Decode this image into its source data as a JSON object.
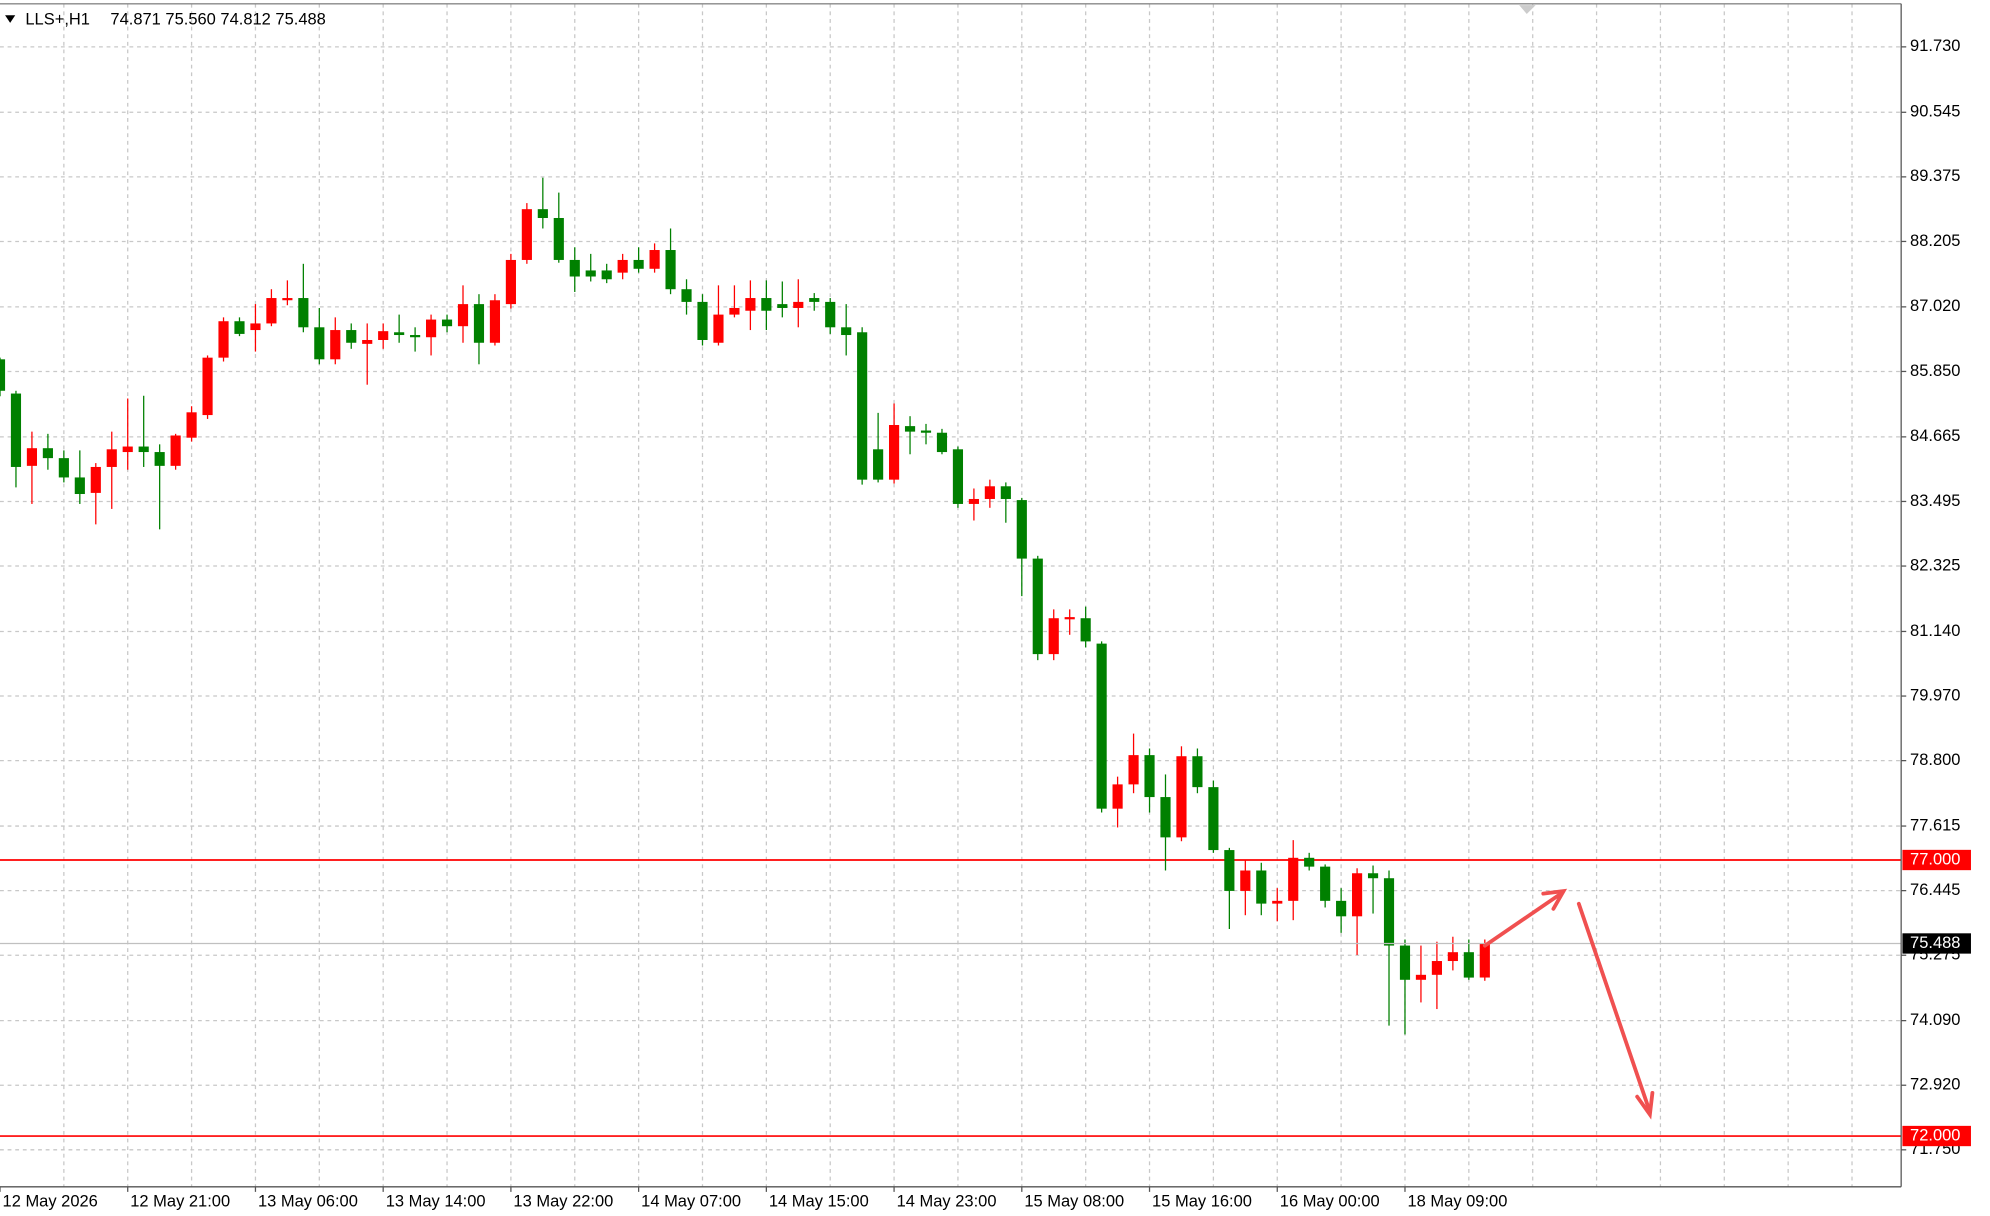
{
  "chart_data": {
    "type": "candlestick",
    "title": "LLS+,H1",
    "ohlc_label": "74.871 75.560 74.812 75.488",
    "categories": [
      "12 May 2026",
      null,
      null,
      null,
      null,
      null,
      null,
      null,
      "12 May 21:00",
      null,
      null,
      null,
      null,
      null,
      null,
      null,
      "13 May 06:00",
      null,
      null,
      null,
      null,
      null,
      null,
      null,
      "13 May 14:00",
      null,
      null,
      null,
      null,
      null,
      null,
      null,
      "13 May 22:00",
      null,
      null,
      null,
      null,
      null,
      null,
      null,
      "14 May 07:00",
      null,
      null,
      null,
      null,
      null,
      null,
      null,
      "14 May 15:00",
      null,
      null,
      null,
      null,
      null,
      null,
      null,
      "14 May 23:00",
      null,
      null,
      null,
      null,
      null,
      null,
      null,
      "15 May 08:00",
      null,
      null,
      null,
      null,
      null,
      null,
      null,
      "15 May 16:00",
      null,
      null,
      null,
      null,
      null,
      null,
      null,
      "16 May 00:00",
      null,
      null,
      null,
      null,
      null,
      null,
      null,
      "18 May 09:00",
      null,
      null,
      null,
      null,
      null
    ],
    "open": [
      86.07,
      85.45,
      84.14,
      84.46,
      84.28,
      83.93,
      83.65,
      84.12,
      84.39,
      84.49,
      84.39,
      84.14,
      84.65,
      85.06,
      86.1,
      86.76,
      86.6,
      86.72,
      87.14,
      87.18,
      86.65,
      86.07,
      86.6,
      86.35,
      86.42,
      86.56,
      86.51,
      86.47,
      86.79,
      86.67,
      87.07,
      86.37,
      87.07,
      87.87,
      88.79,
      88.63,
      87.87,
      87.68,
      87.68,
      87.64,
      87.87,
      87.71,
      88.05,
      87.34,
      87.11,
      86.37,
      86.88,
      86.95,
      87.18,
      87.07,
      87.0,
      87.18,
      87.11,
      86.65,
      86.56,
      84.44,
      83.89,
      84.86,
      84.78,
      84.74,
      84.44,
      83.45,
      83.54,
      83.77,
      83.52,
      82.46,
      80.73,
      81.36,
      81.38,
      80.92,
      77.93,
      78.37,
      78.9,
      78.14,
      77.41,
      78.88,
      78.32,
      77.18,
      76.44,
      76.81,
      76.21,
      76.26,
      77.04,
      76.88,
      76.26,
      75.98,
      76.76,
      76.67,
      75.45,
      74.83,
      74.92,
      75.17,
      75.33,
      74.871
    ],
    "high": [
      86.1,
      85.5,
      84.76,
      84.72,
      84.42,
      84.42,
      84.19,
      84.76,
      85.36,
      85.41,
      84.53,
      84.72,
      85.22,
      86.14,
      86.83,
      86.83,
      87.07,
      87.34,
      87.5,
      87.8,
      87.0,
      86.83,
      86.72,
      86.72,
      86.72,
      86.88,
      86.65,
      86.88,
      86.88,
      87.41,
      87.25,
      87.25,
      87.98,
      88.9,
      89.36,
      89.09,
      88.1,
      87.98,
      87.8,
      87.98,
      88.1,
      88.17,
      88.44,
      87.52,
      87.25,
      87.41,
      87.41,
      87.5,
      87.5,
      87.48,
      87.52,
      87.27,
      87.18,
      87.07,
      86.65,
      85.1,
      85.27,
      85.04,
      84.9,
      84.81,
      84.49,
      83.73,
      83.89,
      83.84,
      83.56,
      82.51,
      81.54,
      81.54,
      81.59,
      80.96,
      78.51,
      79.29,
      79.02,
      78.55,
      79.06,
      79.02,
      78.44,
      77.22,
      76.99,
      76.95,
      76.49,
      77.36,
      77.13,
      76.92,
      76.49,
      76.85,
      76.9,
      76.81,
      75.56,
      75.45,
      75.52,
      75.61,
      75.56,
      75.56
    ],
    "low": [
      85.4,
      83.75,
      83.45,
      84.07,
      83.84,
      83.45,
      83.08,
      83.36,
      84.07,
      84.12,
      82.99,
      84.07,
      84.58,
      84.99,
      86.03,
      86.49,
      86.21,
      86.67,
      87.05,
      86.56,
      85.98,
      85.98,
      86.26,
      85.61,
      86.26,
      86.37,
      86.21,
      86.14,
      86.56,
      86.37,
      85.98,
      86.32,
      86.99,
      87.8,
      88.44,
      87.82,
      87.29,
      87.48,
      87.45,
      87.52,
      87.64,
      87.64,
      87.25,
      86.88,
      86.32,
      86.32,
      86.83,
      86.6,
      86.6,
      86.83,
      86.65,
      86.95,
      86.53,
      86.14,
      83.8,
      83.84,
      83.82,
      84.35,
      84.53,
      84.35,
      83.38,
      83.15,
      83.38,
      83.11,
      81.78,
      80.62,
      80.62,
      81.08,
      80.85,
      77.86,
      77.59,
      78.21,
      77.86,
      76.81,
      77.34,
      78.21,
      77.13,
      75.75,
      76.0,
      76.0,
      75.89,
      75.91,
      76.81,
      76.14,
      75.68,
      75.28,
      76.03,
      74.0,
      73.84,
      74.42,
      74.3,
      75.0,
      74.83,
      74.812
    ],
    "close": [
      85.5,
      84.12,
      84.46,
      84.28,
      83.93,
      83.63,
      84.12,
      84.44,
      84.49,
      84.39,
      84.14,
      84.69,
      85.11,
      86.1,
      86.76,
      86.53,
      86.72,
      87.18,
      87.18,
      86.65,
      86.07,
      86.6,
      86.37,
      86.42,
      86.58,
      86.51,
      86.47,
      86.79,
      86.67,
      87.07,
      86.37,
      87.14,
      87.87,
      88.79,
      88.63,
      87.87,
      87.57,
      87.57,
      87.52,
      87.87,
      87.71,
      88.05,
      87.34,
      87.11,
      86.42,
      86.88,
      87.0,
      87.18,
      86.95,
      87.0,
      87.11,
      87.11,
      86.65,
      86.51,
      83.89,
      83.89,
      84.88,
      84.76,
      84.74,
      84.39,
      83.45,
      83.54,
      83.77,
      83.54,
      82.46,
      80.73,
      81.38,
      81.4,
      80.96,
      77.93,
      78.37,
      78.9,
      78.14,
      77.41,
      78.88,
      78.32,
      77.18,
      76.44,
      76.81,
      76.21,
      76.26,
      77.04,
      76.88,
      76.26,
      75.98,
      76.76,
      76.67,
      75.45,
      74.83,
      74.92,
      75.17,
      75.33,
      74.87,
      75.488
    ],
    "up_color": "#ff0000",
    "down_color": "#008000",
    "ylim": [
      71.08,
      92.51
    ],
    "yticks": [
      {
        "value": 91.73,
        "label": "91.730"
      },
      90.545,
      89.375,
      88.205,
      {
        "value": 87.02,
        "label": "87.020"
      },
      {
        "value": 85.85,
        "label": "85.850"
      },
      84.665,
      83.495,
      82.325,
      {
        "value": 81.14,
        "label": "81.140"
      },
      {
        "value": 79.97,
        "label": "79.970"
      },
      {
        "value": 78.8,
        "label": "78.800"
      },
      77.615,
      76.445,
      75.275,
      {
        "value": 74.09,
        "label": "74.090"
      },
      {
        "value": 72.92,
        "label": "72.920"
      },
      {
        "value": 71.75,
        "label": "71.750"
      }
    ],
    "grid": true,
    "levels": [
      {
        "value": 77,
        "label": "77.000",
        "color": "#ff0000"
      },
      {
        "value": 72,
        "label": "72.000",
        "color": "#ff0000"
      }
    ],
    "last_price": 75.488
  }
}
